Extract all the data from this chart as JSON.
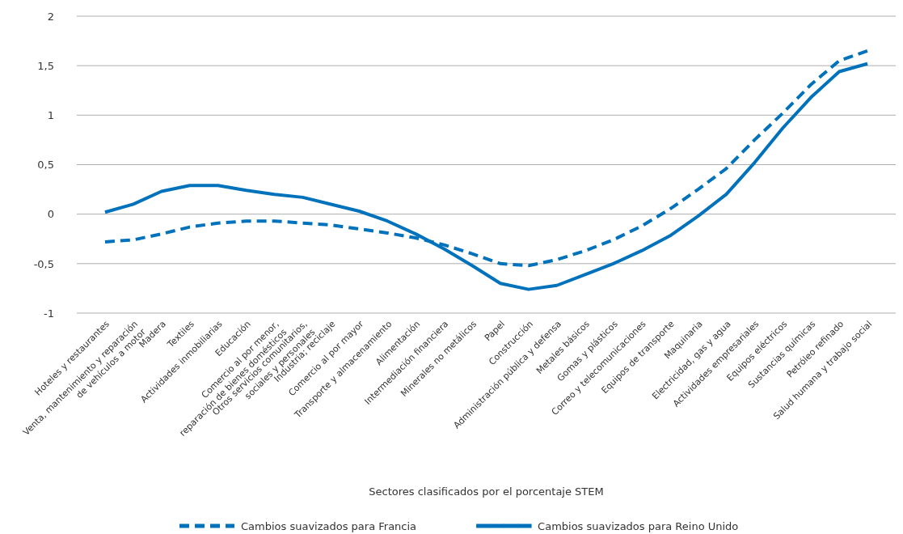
{
  "chart_data": {
    "type": "line",
    "xlabel": "Sectores clasificados por el porcentaje STEM",
    "categories": [
      "Hoteles y restaurantes",
      "Venta, mantenimiento y reparación de vehículos a motor",
      "Madera",
      "Textiles",
      "Actividades inmobiliarias",
      "Educación",
      "Comercio al por menor, reparación de bienes domésticos",
      "Otros servicios comunitarios, sociales y personales",
      "Industria; reciclaje",
      "Comercio al por mayor",
      "Transporte y almacenamiento",
      "Alimentación",
      "Intermediación financiera",
      "Minerales no metálicos",
      "Papel",
      "Construcción",
      "Administración pública y defensa",
      "Metales básicos",
      "Gomas y plásticos",
      "Correo y telecomunicaciones",
      "Equipos de transporte",
      "Maquinaria",
      "Electricidad, gas y agua",
      "Actividades empresariales",
      "Equipos eléctricos",
      "Sustancias químicas",
      "Petróleo refinado",
      "Salud humana y trabajo social"
    ],
    "series": [
      {
        "name": "Cambios suavizados para Francia",
        "color": "#0072bc",
        "line_style": "dashed",
        "values": [
          -0.28,
          -0.26,
          -0.2,
          -0.13,
          -0.09,
          -0.07,
          -0.07,
          -0.09,
          -0.11,
          -0.15,
          -0.19,
          -0.24,
          -0.31,
          -0.4,
          -0.5,
          -0.52,
          -0.46,
          -0.37,
          -0.26,
          -0.12,
          0.05,
          0.25,
          0.46,
          0.75,
          1.02,
          1.31,
          1.55,
          1.65
        ]
      },
      {
        "name": "Cambios suavizados para Reino Unido",
        "color": "#0072bc",
        "line_style": "solid",
        "values": [
          0.02,
          0.1,
          0.23,
          0.29,
          0.29,
          0.24,
          0.2,
          0.17,
          0.1,
          0.03,
          -0.07,
          -0.2,
          -0.35,
          -0.52,
          -0.7,
          -0.76,
          -0.72,
          -0.61,
          -0.5,
          -0.37,
          -0.22,
          -0.02,
          0.2,
          0.52,
          0.87,
          1.18,
          1.44,
          1.52
        ]
      }
    ],
    "ylim": [
      -1,
      2
    ],
    "yticks": [
      {
        "value": -1,
        "label": "-1"
      },
      {
        "value": -0.5,
        "label": "-0,5"
      },
      {
        "value": 0,
        "label": "0"
      },
      {
        "value": 0.5,
        "label": "0,5"
      },
      {
        "value": 1,
        "label": "1"
      },
      {
        "value": 1.5,
        "label": "1,5"
      },
      {
        "value": 2,
        "label": "2"
      }
    ],
    "grid": "y",
    "legend": "bottom",
    "marker": "none"
  }
}
